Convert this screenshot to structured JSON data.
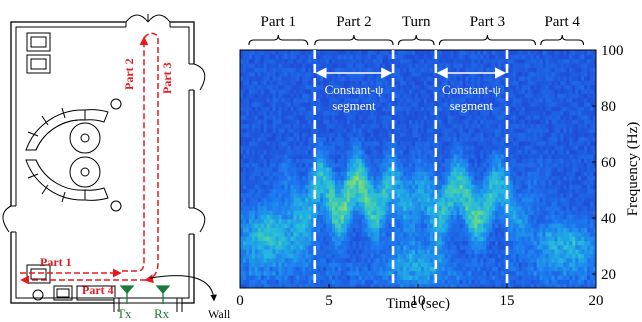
{
  "floorplan": {
    "path_labels": [
      "Part 1",
      "Part 2",
      "Part 3",
      "Part 4"
    ],
    "tx_label": "Tx",
    "rx_label": "Rx",
    "wall_label": "Wall",
    "colors": {
      "path": "#e8191c",
      "antenna": "#1a7a3a",
      "line": "#000000"
    }
  },
  "spectrogram": {
    "segment_labels": [
      "Part 1",
      "Part 2",
      "Turn",
      "Part 3",
      "Part 4"
    ],
    "segment_bounds_sec": [
      [
        0.5,
        3.8
      ],
      [
        4.2,
        8.6
      ],
      [
        8.9,
        10.9
      ],
      [
        11.2,
        16.6
      ],
      [
        16.9,
        19.3
      ]
    ],
    "constant_psi_segments": [
      [
        4.2,
        8.6
      ],
      [
        11.0,
        15.0
      ]
    ],
    "constant_psi_label_line1": "Constant-ψ",
    "constant_psi_label_line2": "segment",
    "divider_lines_sec": [
      4.2,
      8.6,
      11.0,
      15.0
    ],
    "xlabel": "Time (sec)",
    "ylabel": "Frequency (Hz)",
    "x_ticks": [
      "0",
      "5",
      "10",
      "15",
      "20"
    ],
    "y_ticks": [
      "20",
      "40",
      "60",
      "80",
      "100"
    ],
    "xlim": [
      0,
      20
    ],
    "ylim": [
      15,
      100
    ],
    "colormap": [
      "#1a1f8c",
      "#1f47d6",
      "#1d7bf0",
      "#23b8e0",
      "#52d39b",
      "#b8e04a",
      "#f5e21a"
    ]
  }
}
